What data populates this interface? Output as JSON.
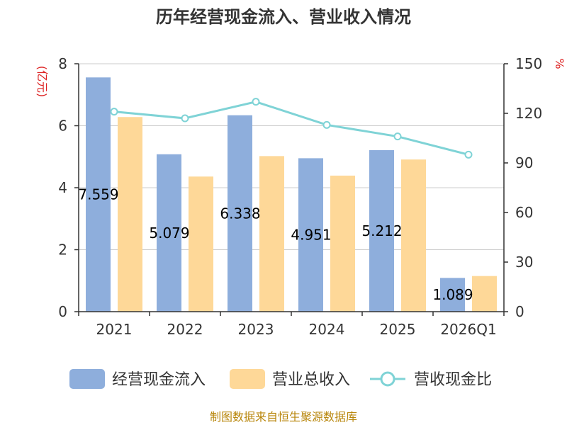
{
  "chart_data": {
    "type": "bar",
    "title": "历年经营现金流入、营业收入情况",
    "categories": [
      "2021",
      "2022",
      "2023",
      "2024",
      "2025",
      "2026Q1"
    ],
    "y_left_label": "(亿元)",
    "y_right_label": "%",
    "y_left_range": [
      0,
      8
    ],
    "y_left_ticks": [
      "0",
      "2",
      "4",
      "6",
      "8"
    ],
    "y_right_range": [
      0,
      150
    ],
    "y_right_ticks": [
      "0",
      "30",
      "60",
      "90",
      "120",
      "150"
    ],
    "grid": true,
    "legend_position": "bottom",
    "series": [
      {
        "name": "经营现金流入",
        "type": "bar",
        "axis": "left",
        "color": "#8eaedc",
        "values": [
          7.559,
          5.079,
          6.338,
          4.951,
          5.212,
          1.089
        ],
        "data_labels": [
          "7.559",
          "5.079",
          "6.338",
          "4.951",
          "5.212",
          "1.089"
        ]
      },
      {
        "name": "营业总收入",
        "type": "bar",
        "axis": "left",
        "color": "#fed898",
        "values": [
          6.28,
          4.36,
          5.02,
          4.39,
          4.91,
          1.15
        ]
      },
      {
        "name": "营收现金比",
        "type": "line",
        "axis": "right",
        "color": "#7fd3d6",
        "values": [
          121,
          117,
          127,
          113,
          106,
          95
        ]
      }
    ]
  },
  "footer": {
    "source": "制图数据来自恒生聚源数据库"
  }
}
